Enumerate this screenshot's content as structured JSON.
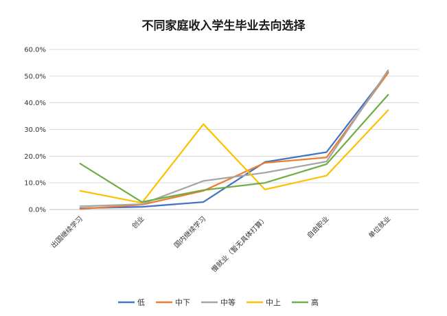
{
  "chart_data": {
    "type": "line",
    "title": "不同家庭收入学生毕业去向选择",
    "xlabel": "",
    "ylabel": "",
    "categories": [
      "出国继续学习",
      "创业",
      "国内继续学习",
      "慢就业（暂无具体打算）",
      "自由职业",
      "单位就业"
    ],
    "y_ticks": [
      "0.0%",
      "10.0%",
      "20.0%",
      "30.0%",
      "40.0%",
      "50.0%",
      "60.0%"
    ],
    "ylim": [
      0,
      60
    ],
    "grid": "horizontal",
    "legend_position": "bottom",
    "series": [
      {
        "name": "低",
        "color": "#4472c4",
        "values": [
          0.5,
          1.0,
          2.8,
          17.8,
          21.5,
          51.5
        ]
      },
      {
        "name": "中下",
        "color": "#ed7d31",
        "values": [
          0.2,
          1.8,
          7.0,
          17.5,
          19.5,
          51.2
        ]
      },
      {
        "name": "中等",
        "color": "#a5a5a5",
        "values": [
          1.2,
          2.0,
          10.7,
          13.8,
          18.0,
          52.2
        ]
      },
      {
        "name": "中上",
        "color": "#ffc000",
        "values": [
          7.0,
          2.5,
          32.0,
          7.5,
          12.7,
          37.2
        ]
      },
      {
        "name": "高",
        "color": "#70ad47",
        "values": [
          17.2,
          2.8,
          7.3,
          10.0,
          17.0,
          43.0
        ]
      }
    ]
  }
}
